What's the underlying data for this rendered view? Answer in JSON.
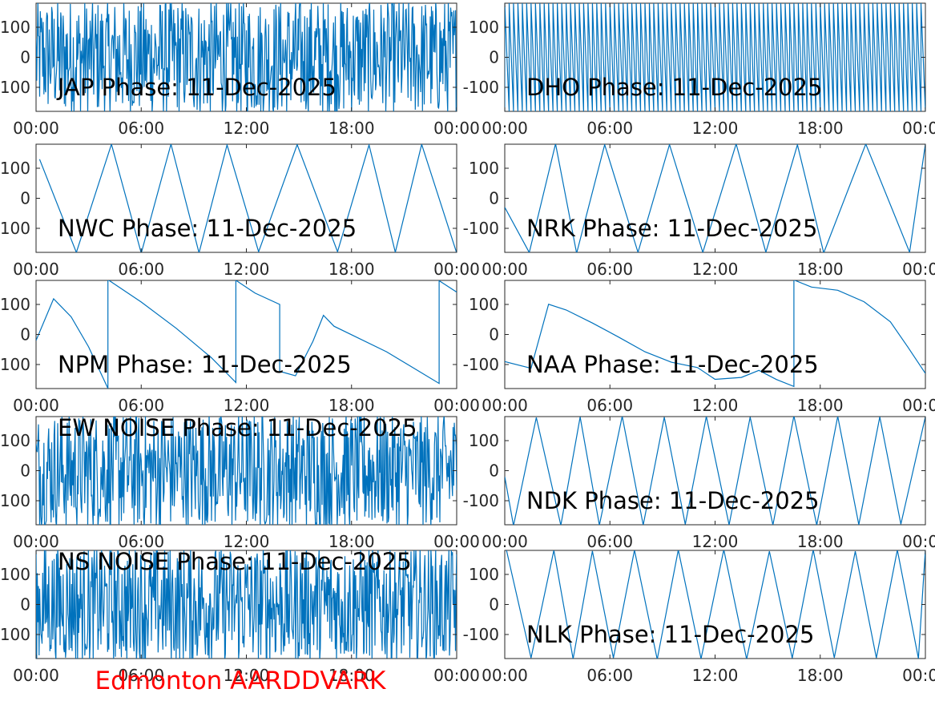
{
  "figure": {
    "suptitle": "Edmonton AARDDVARK",
    "suptitle_color": "#ff0000",
    "line_color": "#0072bd"
  },
  "chart_data": [
    {
      "type": "line",
      "title": "JAP Phase: 11-Dec-2025",
      "xlim": [
        0,
        24
      ],
      "ylim": [
        -180,
        180
      ],
      "xticks": [
        "00:00",
        "06:00",
        "12:00",
        "18:00",
        "00:00"
      ],
      "yticks": [
        "-100",
        "0",
        "100"
      ],
      "signal": "noise",
      "series": [
        {
          "x_hours": [
            0,
            24
          ],
          "y_range_deg": [
            -180,
            180
          ]
        }
      ]
    },
    {
      "type": "line",
      "title": "DHO Phase: 11-Dec-2025",
      "xlim": [
        0,
        24
      ],
      "ylim": [
        -180,
        180
      ],
      "xticks": [
        "00:00",
        "06:00",
        "12:00",
        "18:00",
        "00:00"
      ],
      "yticks": [
        "-100",
        "0",
        "100"
      ],
      "signal": "fast-wrap",
      "series": [
        {
          "x_hours": [
            0,
            24
          ],
          "wrap_period_hours": 0.25
        }
      ]
    },
    {
      "type": "line",
      "title": "NWC Phase: 11-Dec-2025",
      "xlim": [
        0,
        24
      ],
      "ylim": [
        -180,
        180
      ],
      "xticks": [
        "00:00",
        "06:00",
        "12:00",
        "18:00",
        "00:00"
      ],
      "yticks": [
        "-100",
        "0",
        "100"
      ],
      "signal": "wrap",
      "series": [
        {
          "x": [
            0.2,
            2.3,
            4.3,
            6.0,
            7.7,
            9.3,
            10.9,
            12.7,
            14.9,
            17.2,
            19.0,
            20.5,
            22.0,
            24.0
          ],
          "y": [
            130,
            -180,
            180,
            -180,
            180,
            -180,
            180,
            -180,
            180,
            -180,
            180,
            -180,
            180,
            -180
          ]
        }
      ]
    },
    {
      "type": "line",
      "title": "NRK Phase: 11-Dec-2025",
      "xlim": [
        0,
        24
      ],
      "ylim": [
        -180,
        180
      ],
      "xticks": [
        "00:00",
        "06:00",
        "12:00",
        "18:00",
        "00:00"
      ],
      "yticks": [
        "-100",
        "0",
        "100"
      ],
      "signal": "wrap",
      "series": [
        {
          "x": [
            0,
            1.4,
            2.9,
            4.1,
            5.7,
            7.6,
            9.4,
            11.3,
            13.2,
            14.9,
            16.7,
            18.2,
            20.6,
            23.1,
            24.0
          ],
          "y": [
            -30,
            -180,
            180,
            -180,
            180,
            -180,
            180,
            -180,
            180,
            -180,
            180,
            -180,
            180,
            -180,
            180
          ]
        }
      ]
    },
    {
      "type": "line",
      "title": "NPM Phase: 11-Dec-2025",
      "xlim": [
        0,
        24
      ],
      "ylim": [
        -180,
        180
      ],
      "xticks": [
        "00:00",
        "06:00",
        "12:00",
        "18:00",
        "00:00"
      ],
      "yticks": [
        "-100",
        "0",
        "100"
      ],
      "signal": "segments",
      "series": [
        {
          "x": [
            0.0,
            1.0,
            2.0,
            3.0,
            4.1,
            4.1,
            6.0,
            8.0,
            10.0,
            11.4,
            11.4,
            12.5,
            13.9,
            13.9,
            14.8,
            15.8,
            16.4,
            17.0,
            20.0,
            23.0,
            23.0,
            24.0
          ],
          "y": [
            -20,
            120,
            60,
            -40,
            -180,
            180,
            110,
            20,
            -80,
            -160,
            180,
            140,
            100,
            -120,
            -140,
            -20,
            65,
            30,
            -60,
            -160,
            180,
            140
          ]
        }
      ]
    },
    {
      "type": "line",
      "title": "NAA Phase: 11-Dec-2025",
      "xlim": [
        0,
        24
      ],
      "ylim": [
        -180,
        180
      ],
      "xticks": [
        "00:00",
        "06:00",
        "12:00",
        "18:00",
        "00:00"
      ],
      "yticks": [
        "-100",
        "0",
        "100"
      ],
      "signal": "segments",
      "series": [
        {
          "x": [
            0.0,
            1.5,
            2.5,
            3.5,
            5.0,
            6.5,
            8.0,
            9.5,
            11.0,
            12.0,
            13.5,
            14.5,
            15.5,
            16.5,
            16.5,
            17.5,
            19.0,
            20.5,
            22.0,
            23.0,
            24.0
          ],
          "y": [
            -90,
            -110,
            100,
            80,
            40,
            -10,
            -60,
            -90,
            -110,
            -150,
            -140,
            -120,
            -150,
            -175,
            180,
            160,
            150,
            110,
            40,
            -40,
            -130
          ]
        }
      ]
    },
    {
      "type": "line",
      "title": "EW NOISE Phase: 11-Dec-2025",
      "xlim": [
        0,
        24
      ],
      "ylim": [
        -180,
        180
      ],
      "xticks": [
        "00:00",
        "06:00",
        "12:00",
        "18:00",
        "00:00"
      ],
      "yticks": [
        "-100",
        "0",
        "100"
      ],
      "signal": "noise",
      "series": [
        {
          "x_hours": [
            0,
            24
          ],
          "y_range_deg": [
            -180,
            180
          ]
        }
      ]
    },
    {
      "type": "line",
      "title": "NDK Phase: 11-Dec-2025",
      "xlim": [
        0,
        24
      ],
      "ylim": [
        -180,
        180
      ],
      "xticks": [
        "00:00",
        "06:00",
        "12:00",
        "18:00",
        "00:00"
      ],
      "yticks": [
        "-100",
        "0",
        "100"
      ],
      "signal": "wrap",
      "series": [
        {
          "x": [
            0,
            0.5,
            1.8,
            3.2,
            4.3,
            5.4,
            6.7,
            7.9,
            9.1,
            10.3,
            11.5,
            12.8,
            14.0,
            15.3,
            16.5,
            17.8,
            19.0,
            20.2,
            21.4,
            22.6,
            24.0
          ],
          "y": [
            -20,
            -180,
            180,
            -180,
            180,
            -180,
            180,
            -180,
            180,
            -180,
            180,
            -180,
            180,
            -180,
            180,
            -180,
            180,
            -180,
            180,
            -180,
            180
          ]
        }
      ]
    },
    {
      "type": "line",
      "title": "NS NOISE Phase: 11-Dec-2025",
      "xlim": [
        0,
        24
      ],
      "ylim": [
        -180,
        180
      ],
      "xticks": [
        "00:00",
        "06:00",
        "12:00",
        "18:00",
        "00:00"
      ],
      "yticks": [
        "-100",
        "0",
        "100"
      ],
      "signal": "noise",
      "series": [
        {
          "x_hours": [
            0,
            24
          ],
          "y_range_deg": [
            -180,
            180
          ]
        }
      ]
    },
    {
      "type": "line",
      "title": "NLK Phase: 11-Dec-2025",
      "xlim": [
        0,
        24
      ],
      "ylim": [
        -180,
        180
      ],
      "xticks": [
        "00:00",
        "06:00",
        "12:00",
        "18:00",
        "00:00"
      ],
      "yticks": [
        "-100",
        "0",
        "100"
      ],
      "signal": "wrap",
      "series": [
        {
          "x": [
            0.1,
            1.5,
            2.8,
            3.9,
            5.0,
            6.2,
            7.4,
            8.7,
            9.9,
            11.2,
            12.5,
            13.8,
            15.1,
            16.4,
            17.6,
            18.8,
            20.0,
            21.2,
            22.4,
            23.6,
            24.0
          ],
          "y": [
            180,
            -180,
            180,
            -180,
            180,
            -180,
            180,
            -180,
            180,
            -180,
            180,
            -180,
            180,
            -180,
            180,
            -180,
            180,
            -180,
            180,
            -180,
            180
          ]
        }
      ]
    }
  ]
}
